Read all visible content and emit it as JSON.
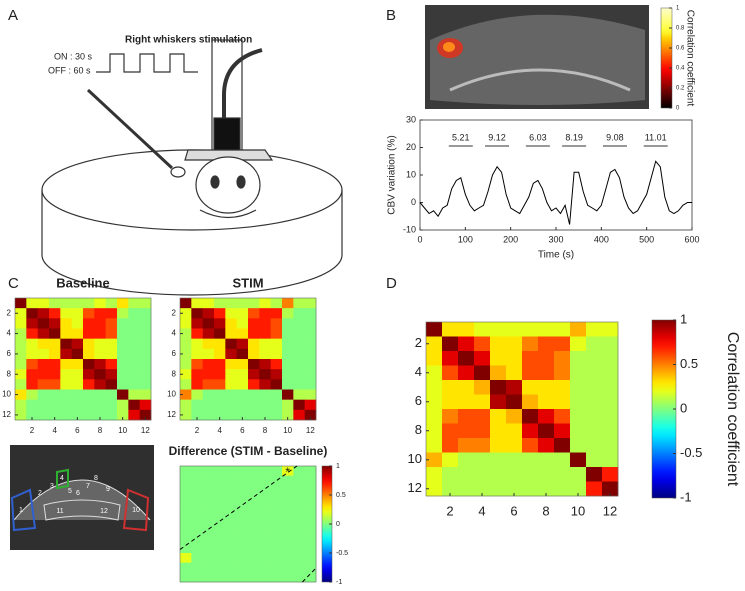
{
  "figure": {
    "panels": [
      "A",
      "B",
      "C",
      "D"
    ],
    "stimulus_title": "Right whiskers stimulation",
    "on_label": "ON : 30 s",
    "off_label": "OFF : 60 s",
    "region_labels": [
      "1",
      "2",
      "3",
      "4",
      "5",
      "6",
      "7",
      "8",
      "9",
      "10",
      "11",
      "12"
    ]
  },
  "chart_data": [
    {
      "type": "line",
      "xlabel": "Time (s)",
      "ylabel": "CBV variation (%)",
      "color": "#000000",
      "x": [
        0,
        10,
        20,
        30,
        40,
        50,
        60,
        70,
        80,
        90,
        100,
        110,
        120,
        130,
        140,
        150,
        160,
        170,
        180,
        190,
        200,
        210,
        220,
        230,
        240,
        250,
        260,
        270,
        280,
        290,
        300,
        310,
        320,
        330,
        340,
        350,
        360,
        370,
        380,
        390,
        400,
        410,
        420,
        430,
        440,
        450,
        460,
        470,
        480,
        490,
        500,
        510,
        520,
        530,
        540,
        550,
        560,
        570,
        580,
        590,
        600
      ],
      "values": [
        0,
        -2,
        -4,
        -3,
        -5,
        -2,
        -1,
        5,
        8,
        9,
        3,
        -1,
        -3,
        -2,
        -1,
        4,
        10,
        13,
        11,
        3,
        -2,
        -3,
        -4,
        -1,
        2,
        7,
        8,
        5,
        0,
        -3,
        -2,
        -4,
        -1,
        -8,
        11,
        11,
        4,
        -1,
        -2,
        -3,
        -1,
        5,
        11,
        12,
        9,
        2,
        -2,
        -4,
        -3,
        0,
        3,
        9,
        15,
        13,
        2,
        -3,
        -4,
        -3,
        -1,
        0,
        0
      ],
      "peak_labels": [
        "5.21",
        "9.12",
        "6.03",
        "8.19",
        "9.08",
        "11.01"
      ],
      "xlim": [
        0,
        600
      ],
      "xticks": [
        0,
        100,
        200,
        300,
        400,
        500,
        600
      ],
      "ylim": [
        -10,
        30
      ],
      "yticks": [
        -10,
        0,
        10,
        20,
        30
      ],
      "colorbar": {
        "colormap": "hot",
        "lim": [
          0,
          1
        ],
        "ticks": [
          0,
          0.2,
          0.4,
          0.6,
          0.8,
          1
        ],
        "label": "Correlation coefficient"
      }
    },
    {
      "type": "heatmap",
      "title": "Baseline",
      "xlim": [
        0.5,
        12.5
      ],
      "ylim": [
        0.5,
        12.5
      ],
      "xticks": [
        2,
        4,
        6,
        8,
        10,
        12
      ],
      "yticks": [
        2,
        4,
        6,
        8,
        10,
        12
      ],
      "colorbar": {
        "colormap": "jet",
        "lim": [
          -1,
          1
        ]
      },
      "values": [
        [
          1,
          0.2,
          0.2,
          0.1,
          0.1,
          0.1,
          0.1,
          0.2,
          0.1,
          0.3,
          0.1,
          0.1
        ],
        [
          0.2,
          1,
          0.9,
          0.7,
          0.2,
          0.2,
          0.6,
          0.7,
          0.7,
          0.1,
          0,
          0
        ],
        [
          0.2,
          0.9,
          1,
          0.9,
          0.3,
          0.2,
          0.7,
          0.7,
          0.6,
          0,
          0,
          0
        ],
        [
          0.1,
          0.7,
          0.9,
          1,
          0.3,
          0.3,
          0.7,
          0.7,
          0.6,
          0,
          0,
          0
        ],
        [
          0.1,
          0.2,
          0.3,
          0.3,
          1,
          0.9,
          0.3,
          0.2,
          0.2,
          0,
          0,
          0
        ],
        [
          0.1,
          0.2,
          0.2,
          0.3,
          0.9,
          1,
          0.3,
          0.2,
          0.2,
          0,
          0,
          0
        ],
        [
          0.1,
          0.6,
          0.7,
          0.7,
          0.3,
          0.3,
          1,
          0.9,
          0.7,
          0,
          0,
          0
        ],
        [
          0.2,
          0.7,
          0.7,
          0.7,
          0.2,
          0.2,
          0.9,
          1,
          0.9,
          0,
          0,
          0
        ],
        [
          0.1,
          0.7,
          0.6,
          0.6,
          0.2,
          0.2,
          0.7,
          0.9,
          1,
          0,
          0,
          0
        ],
        [
          0.3,
          0.1,
          0,
          0,
          0,
          0,
          0,
          0,
          0,
          1,
          0.1,
          0.1
        ],
        [
          0.1,
          0,
          0,
          0,
          0,
          0,
          0,
          0,
          0,
          0.1,
          1,
          0.8
        ],
        [
          0.1,
          0,
          0,
          0,
          0,
          0,
          0,
          0,
          0,
          0.1,
          0.8,
          1
        ]
      ]
    },
    {
      "type": "heatmap",
      "title": "STIM",
      "xlim": [
        0.5,
        12.5
      ],
      "ylim": [
        0.5,
        12.5
      ],
      "xticks": [
        2,
        4,
        6,
        8,
        10,
        12
      ],
      "yticks": [
        2,
        4,
        6,
        8,
        10,
        12
      ],
      "colorbar": {
        "colormap": "jet",
        "lim": [
          -1,
          1
        ]
      },
      "values": [
        [
          1,
          0.2,
          0.2,
          0.1,
          0.1,
          0.1,
          0.1,
          0.2,
          0.1,
          0.5,
          0.1,
          0.1
        ],
        [
          0.2,
          1,
          0.9,
          0.7,
          0.2,
          0.2,
          0.6,
          0.7,
          0.7,
          0.1,
          0,
          0
        ],
        [
          0.2,
          0.9,
          1,
          0.9,
          0.3,
          0.2,
          0.7,
          0.7,
          0.6,
          0,
          0,
          0
        ],
        [
          0.1,
          0.7,
          0.9,
          1,
          0.3,
          0.3,
          0.7,
          0.7,
          0.6,
          0,
          0,
          0
        ],
        [
          0.1,
          0.2,
          0.3,
          0.3,
          1,
          0.9,
          0.3,
          0.2,
          0.2,
          0,
          0,
          0
        ],
        [
          0.1,
          0.2,
          0.2,
          0.3,
          0.9,
          1,
          0.3,
          0.2,
          0.2,
          0,
          0,
          0
        ],
        [
          0.1,
          0.6,
          0.7,
          0.7,
          0.3,
          0.3,
          1,
          0.9,
          0.7,
          0,
          0,
          0
        ],
        [
          0.2,
          0.7,
          0.7,
          0.7,
          0.2,
          0.2,
          0.9,
          1,
          0.9,
          0,
          0,
          0
        ],
        [
          0.1,
          0.7,
          0.6,
          0.6,
          0.2,
          0.2,
          0.7,
          0.9,
          1,
          0,
          0,
          0
        ],
        [
          0.5,
          0.1,
          0,
          0,
          0,
          0,
          0,
          0,
          0,
          1,
          0.1,
          0.1
        ],
        [
          0.1,
          0,
          0,
          0,
          0,
          0,
          0,
          0,
          0,
          0.1,
          1,
          0.8
        ],
        [
          0.1,
          0,
          0,
          0,
          0,
          0,
          0,
          0,
          0,
          0.1,
          0.8,
          1
        ]
      ]
    },
    {
      "type": "heatmap",
      "title": "Difference (STIM - Baseline)",
      "xlim": [
        0.5,
        12.5
      ],
      "ylim": [
        0.5,
        12.5
      ],
      "annotation": "*",
      "colorbar": {
        "colormap": "jet",
        "lim": [
          -1,
          1
        ],
        "ticks": [
          -1,
          -0.5,
          0,
          0.5,
          1
        ]
      },
      "values": [
        [
          0,
          0,
          0,
          0,
          0,
          0,
          0,
          0,
          0,
          0.2,
          0,
          0
        ],
        [
          0,
          0,
          0,
          0,
          0,
          0,
          0,
          0,
          0,
          0,
          0,
          0
        ],
        [
          0,
          0,
          0,
          0,
          0,
          0,
          0,
          0,
          0,
          0,
          0,
          0
        ],
        [
          0,
          0,
          0,
          0,
          0,
          0,
          0,
          0,
          0,
          0,
          0,
          0
        ],
        [
          0,
          0,
          0,
          0,
          0,
          0,
          0,
          0,
          0,
          0,
          0,
          0
        ],
        [
          0,
          0,
          0,
          0,
          0,
          0,
          0,
          0,
          0,
          0,
          0,
          0
        ],
        [
          0,
          0,
          0,
          0,
          0,
          0,
          0,
          0,
          0,
          0,
          0,
          0
        ],
        [
          0,
          0,
          0,
          0,
          0,
          0,
          0,
          0,
          0,
          0,
          0,
          0
        ],
        [
          0,
          0,
          0,
          0,
          0,
          0,
          0,
          0,
          0,
          0,
          0,
          0
        ],
        [
          0.2,
          0,
          0,
          0,
          0,
          0,
          0,
          0,
          0,
          0,
          0,
          0
        ],
        [
          0,
          0,
          0,
          0,
          0,
          0,
          0,
          0,
          0,
          0,
          0,
          0
        ],
        [
          0,
          0,
          0,
          0,
          0,
          0,
          0,
          0,
          0,
          0,
          0,
          0
        ]
      ]
    },
    {
      "type": "heatmap",
      "xlim": [
        0.5,
        12.5
      ],
      "ylim": [
        0.5,
        12.5
      ],
      "xticks": [
        2,
        4,
        6,
        8,
        10,
        12
      ],
      "yticks": [
        2,
        4,
        6,
        8,
        10,
        12
      ],
      "colorbar": {
        "colormap": "jet",
        "lim": [
          -1,
          1
        ],
        "ticks": [
          -1,
          -0.5,
          0,
          0.5,
          1
        ],
        "label": "Correlation coefficient"
      },
      "values": [
        [
          1,
          0.3,
          0.3,
          0.2,
          0.2,
          0.2,
          0.2,
          0.2,
          0.2,
          0.4,
          0.2,
          0.2
        ],
        [
          0.3,
          1,
          0.8,
          0.6,
          0.3,
          0.3,
          0.5,
          0.6,
          0.6,
          0.2,
          0.1,
          0.1
        ],
        [
          0.3,
          0.8,
          1,
          0.8,
          0.3,
          0.3,
          0.6,
          0.6,
          0.5,
          0.1,
          0.1,
          0.1
        ],
        [
          0.2,
          0.6,
          0.8,
          1,
          0.4,
          0.3,
          0.6,
          0.6,
          0.5,
          0.1,
          0.1,
          0.1
        ],
        [
          0.2,
          0.3,
          0.3,
          0.4,
          1,
          0.9,
          0.3,
          0.3,
          0.3,
          0.1,
          0.1,
          0.1
        ],
        [
          0.2,
          0.3,
          0.3,
          0.3,
          0.9,
          1,
          0.4,
          0.3,
          0.3,
          0.1,
          0.1,
          0.1
        ],
        [
          0.2,
          0.5,
          0.6,
          0.6,
          0.3,
          0.4,
          1,
          0.8,
          0.6,
          0.1,
          0.1,
          0.1
        ],
        [
          0.2,
          0.6,
          0.6,
          0.6,
          0.3,
          0.3,
          0.8,
          1,
          0.8,
          0.1,
          0.1,
          0.1
        ],
        [
          0.2,
          0.6,
          0.5,
          0.5,
          0.3,
          0.3,
          0.6,
          0.8,
          1,
          0.1,
          0.1,
          0.1
        ],
        [
          0.4,
          0.2,
          0.1,
          0.1,
          0.1,
          0.1,
          0.1,
          0.1,
          0.1,
          1,
          0.1,
          0.1
        ],
        [
          0.2,
          0.1,
          0.1,
          0.1,
          0.1,
          0.1,
          0.1,
          0.1,
          0.1,
          0.1,
          1,
          0.7
        ],
        [
          0.2,
          0.1,
          0.1,
          0.1,
          0.1,
          0.1,
          0.1,
          0.1,
          0.1,
          0.1,
          0.7,
          1
        ]
      ]
    }
  ]
}
